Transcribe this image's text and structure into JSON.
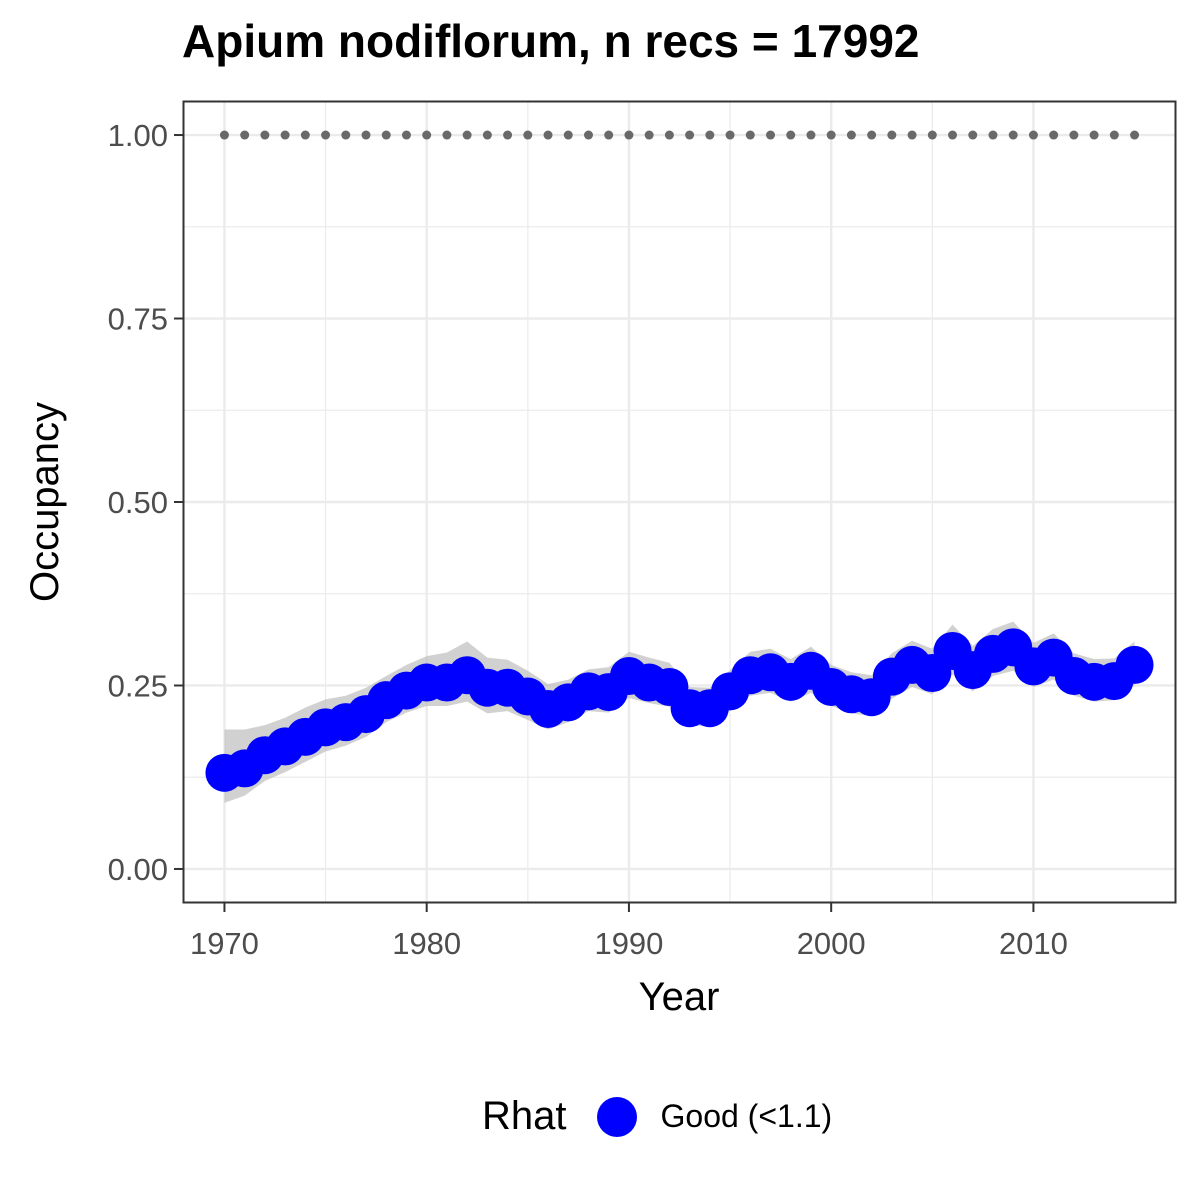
{
  "chart_data": {
    "type": "line",
    "title": "Apium nodiflorum, n recs = 17992",
    "xlabel": "Year",
    "ylabel": "Occupancy",
    "xlim": [
      1968,
      2017
    ],
    "ylim": [
      -0.045,
      1.045
    ],
    "x_ticks": [
      1970,
      1980,
      1990,
      2000,
      2010
    ],
    "x_tick_labels": [
      "1970",
      "1980",
      "1990",
      "2000",
      "2010"
    ],
    "y_ticks": [
      0,
      0.25,
      0.5,
      0.75,
      1.0
    ],
    "y_tick_labels": [
      "0.00",
      "0.25",
      "0.50",
      "0.75",
      "1.00"
    ],
    "grid": true,
    "legend_position": "bottom",
    "legend": {
      "title": "Rhat",
      "entries": [
        {
          "label": "Good (<1.1)",
          "color": "#0000ff"
        }
      ]
    },
    "series": [
      {
        "name": "Good (<1.1)",
        "color": "#0000ff",
        "x": [
          1970,
          1971,
          1972,
          1973,
          1974,
          1975,
          1976,
          1977,
          1978,
          1979,
          1980,
          1981,
          1982,
          1983,
          1984,
          1985,
          1986,
          1987,
          1988,
          1989,
          1990,
          1991,
          1992,
          1993,
          1994,
          1995,
          1996,
          1997,
          1998,
          1999,
          2000,
          2001,
          2002,
          2003,
          2004,
          2005,
          2006,
          2007,
          2008,
          2009,
          2010,
          2011,
          2012,
          2013,
          2014,
          2015
        ],
        "y": [
          0.131,
          0.137,
          0.155,
          0.167,
          0.18,
          0.193,
          0.2,
          0.211,
          0.23,
          0.243,
          0.254,
          0.254,
          0.264,
          0.247,
          0.247,
          0.235,
          0.218,
          0.227,
          0.242,
          0.241,
          0.263,
          0.254,
          0.248,
          0.219,
          0.219,
          0.242,
          0.264,
          0.268,
          0.255,
          0.27,
          0.248,
          0.238,
          0.234,
          0.262,
          0.278,
          0.267,
          0.297,
          0.271,
          0.293,
          0.302,
          0.276,
          0.288,
          0.263,
          0.255,
          0.256,
          0.278
        ],
        "lower": [
          0.09,
          0.1,
          0.12,
          0.132,
          0.146,
          0.16,
          0.168,
          0.18,
          0.2,
          0.213,
          0.222,
          0.222,
          0.228,
          0.212,
          0.215,
          0.203,
          0.19,
          0.2,
          0.215,
          0.213,
          0.233,
          0.226,
          0.221,
          0.195,
          0.195,
          0.216,
          0.236,
          0.24,
          0.228,
          0.24,
          0.222,
          0.212,
          0.208,
          0.232,
          0.248,
          0.238,
          0.265,
          0.242,
          0.263,
          0.27,
          0.248,
          0.258,
          0.236,
          0.228,
          0.23,
          0.25
        ],
        "upper": [
          0.19,
          0.19,
          0.196,
          0.206,
          0.22,
          0.231,
          0.236,
          0.247,
          0.263,
          0.278,
          0.29,
          0.295,
          0.31,
          0.288,
          0.285,
          0.27,
          0.252,
          0.258,
          0.272,
          0.275,
          0.296,
          0.288,
          0.281,
          0.248,
          0.247,
          0.271,
          0.296,
          0.3,
          0.286,
          0.303,
          0.278,
          0.268,
          0.264,
          0.294,
          0.311,
          0.3,
          0.333,
          0.304,
          0.327,
          0.337,
          0.308,
          0.321,
          0.294,
          0.286,
          0.287,
          0.31
        ]
      },
      {
        "name": "",
        "style": "dotted",
        "color": "#696969",
        "x": [
          1970,
          1971,
          1972,
          1973,
          1974,
          1975,
          1976,
          1977,
          1978,
          1979,
          1980,
          1981,
          1982,
          1983,
          1984,
          1985,
          1986,
          1987,
          1988,
          1989,
          1990,
          1991,
          1992,
          1993,
          1994,
          1995,
          1996,
          1997,
          1998,
          1999,
          2000,
          2001,
          2002,
          2003,
          2004,
          2005,
          2006,
          2007,
          2008,
          2009,
          2010,
          2011,
          2012,
          2013,
          2014,
          2015
        ],
        "y": [
          1,
          1,
          1,
          1,
          1,
          1,
          1,
          1,
          1,
          1,
          1,
          1,
          1,
          1,
          1,
          1,
          1,
          1,
          1,
          1,
          1,
          1,
          1,
          1,
          1,
          1,
          1,
          1,
          1,
          1,
          1,
          1,
          1,
          1,
          1,
          1,
          1,
          1,
          1,
          1,
          1,
          1,
          1,
          1,
          1,
          1
        ]
      }
    ]
  }
}
